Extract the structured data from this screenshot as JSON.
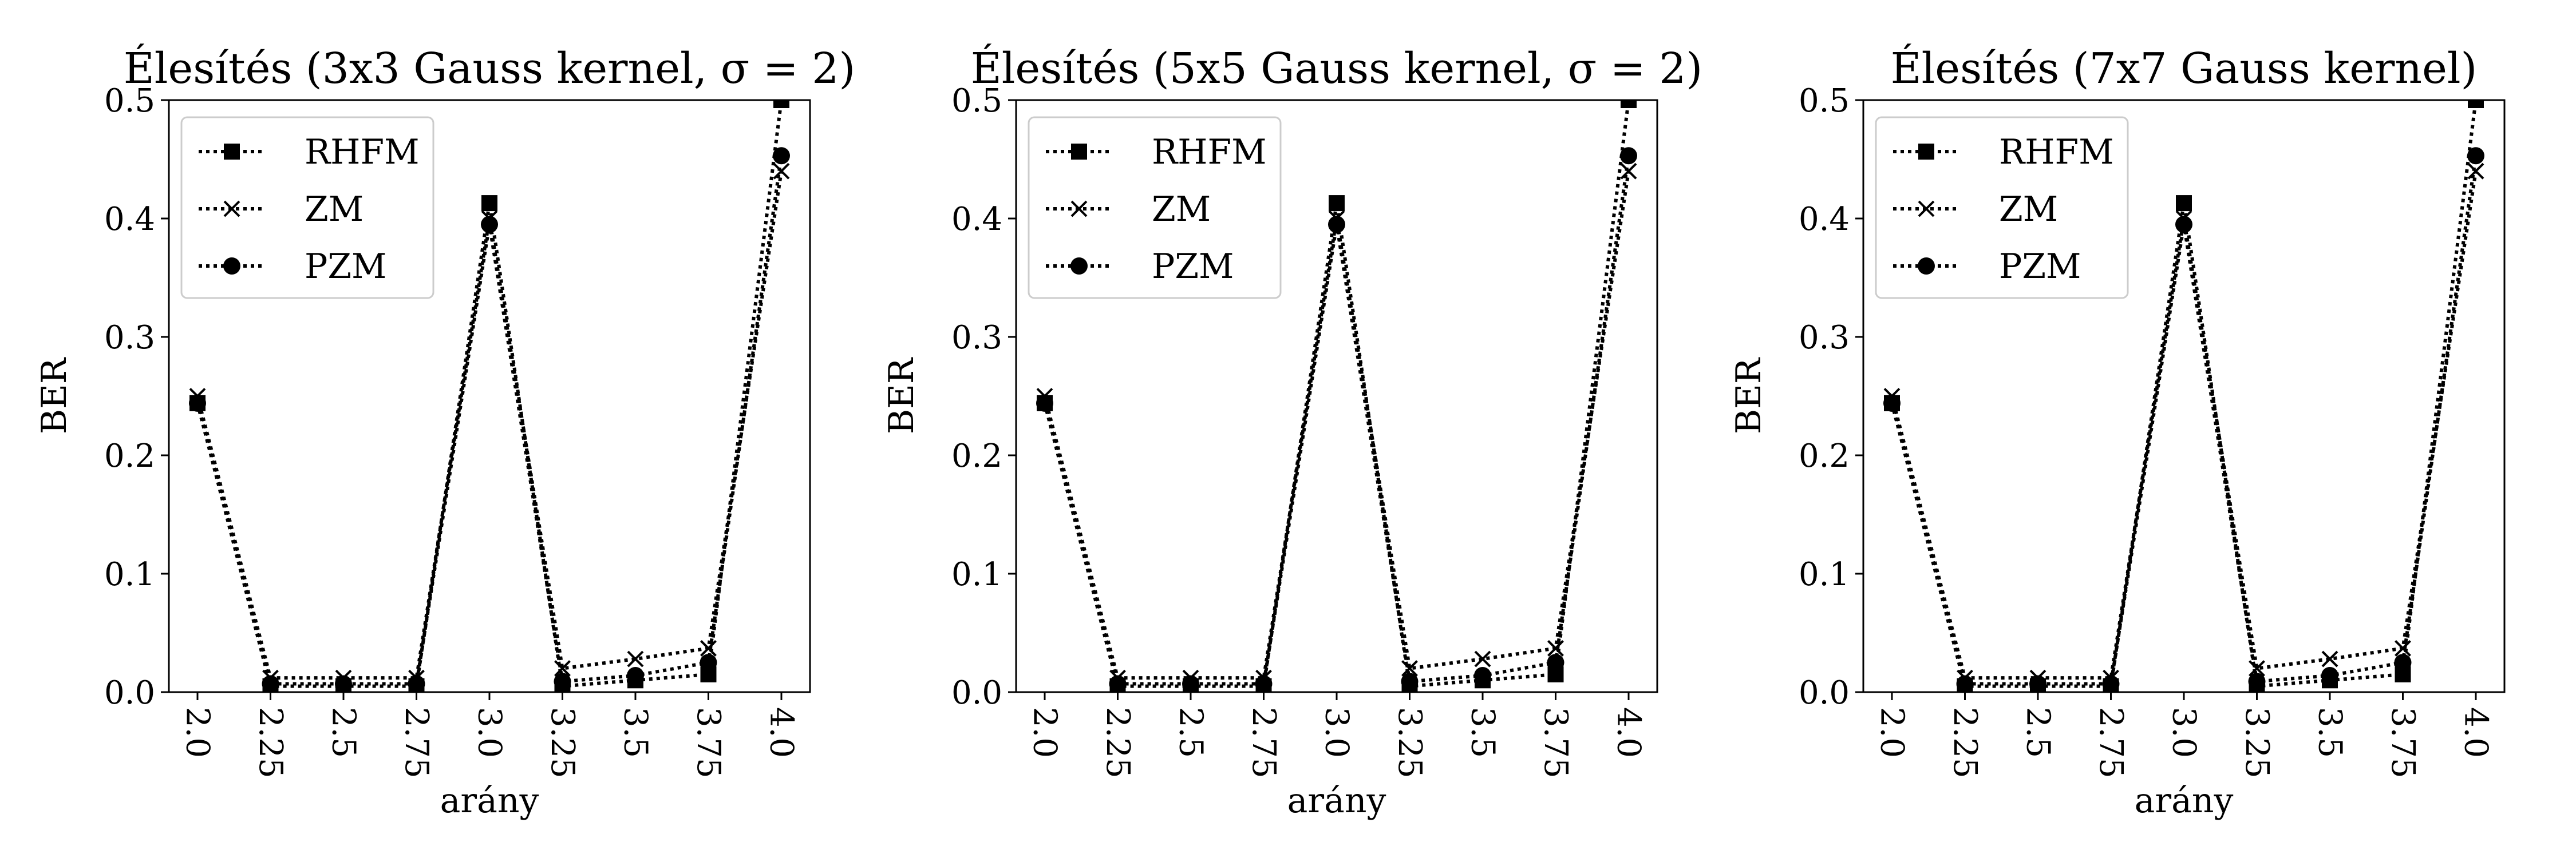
{
  "chart_data": [
    {
      "type": "line",
      "title": "Élesítés (3x3 Gauss kernel, σ = 2)",
      "xlabel": "arány",
      "ylabel": "BER",
      "categories": [
        "2.0",
        "2.25",
        "2.5",
        "2.75",
        "3.0",
        "3.25",
        "3.5",
        "3.75",
        "4.0"
      ],
      "ylim": [
        0,
        0.5
      ],
      "yticks": [
        "0.0",
        "0.1",
        "0.2",
        "0.3",
        "0.4",
        "0.5"
      ],
      "grid": false,
      "legend_position": "top-left",
      "series": [
        {
          "name": "RHFM",
          "marker": "square",
          "values": [
            0.244,
            0.005,
            0.005,
            0.005,
            0.413,
            0.005,
            0.01,
            0.015,
            0.5
          ]
        },
        {
          "name": "ZM",
          "marker": "x",
          "values": [
            0.25,
            0.012,
            0.012,
            0.012,
            0.4,
            0.02,
            0.028,
            0.037,
            0.44
          ]
        },
        {
          "name": "PZM",
          "marker": "circle",
          "values": [
            0.244,
            0.007,
            0.007,
            0.007,
            0.395,
            0.009,
            0.014,
            0.025,
            0.453
          ]
        }
      ]
    },
    {
      "type": "line",
      "title": "Élesítés (5x5 Gauss kernel, σ = 2)",
      "xlabel": "arány",
      "ylabel": "BER",
      "categories": [
        "2.0",
        "2.25",
        "2.5",
        "2.75",
        "3.0",
        "3.25",
        "3.5",
        "3.75",
        "4.0"
      ],
      "ylim": [
        0,
        0.5
      ],
      "yticks": [
        "0.0",
        "0.1",
        "0.2",
        "0.3",
        "0.4",
        "0.5"
      ],
      "grid": false,
      "legend_position": "top-left",
      "series": [
        {
          "name": "RHFM",
          "marker": "square",
          "values": [
            0.244,
            0.005,
            0.005,
            0.005,
            0.413,
            0.005,
            0.01,
            0.015,
            0.5
          ]
        },
        {
          "name": "ZM",
          "marker": "x",
          "values": [
            0.25,
            0.012,
            0.012,
            0.012,
            0.4,
            0.02,
            0.028,
            0.037,
            0.44
          ]
        },
        {
          "name": "PZM",
          "marker": "circle",
          "values": [
            0.244,
            0.007,
            0.007,
            0.007,
            0.395,
            0.009,
            0.014,
            0.025,
            0.453
          ]
        }
      ]
    },
    {
      "type": "line",
      "title": "Élesítés (7x7 Gauss kernel)",
      "xlabel": "arány",
      "ylabel": "BER",
      "categories": [
        "2.0",
        "2.25",
        "2.5",
        "2.75",
        "3.0",
        "3.25",
        "3.5",
        "3.75",
        "4.0"
      ],
      "ylim": [
        0,
        0.5
      ],
      "yticks": [
        "0.0",
        "0.1",
        "0.2",
        "0.3",
        "0.4",
        "0.5"
      ],
      "grid": false,
      "legend_position": "top-left",
      "series": [
        {
          "name": "RHFM",
          "marker": "square",
          "values": [
            0.244,
            0.005,
            0.005,
            0.005,
            0.413,
            0.005,
            0.01,
            0.015,
            0.5
          ]
        },
        {
          "name": "ZM",
          "marker": "x",
          "values": [
            0.25,
            0.012,
            0.012,
            0.012,
            0.4,
            0.02,
            0.028,
            0.037,
            0.44
          ]
        },
        {
          "name": "PZM",
          "marker": "circle",
          "values": [
            0.244,
            0.007,
            0.007,
            0.007,
            0.395,
            0.009,
            0.014,
            0.025,
            0.453
          ]
        }
      ]
    }
  ]
}
